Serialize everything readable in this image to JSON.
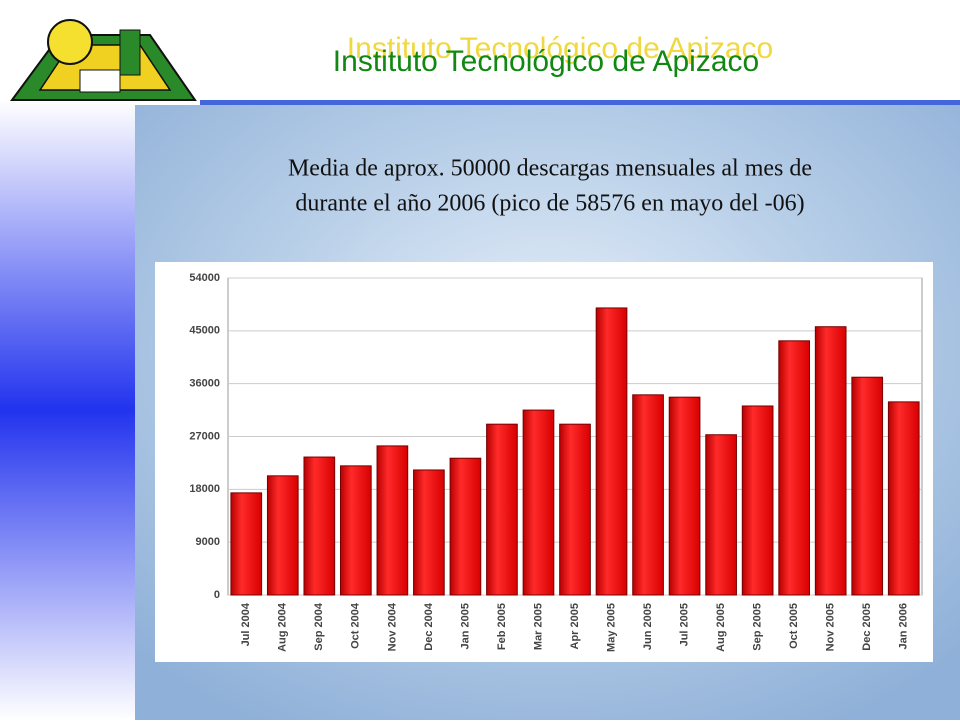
{
  "slide": {
    "title": "Instituto Tecnológico de Apizaco",
    "text": [
      "Media de aprox. 50000 descargas mensuales al mes de",
      "durante el año 2006 (pico de 58576 en mayo del -06)"
    ]
  },
  "chart_data": {
    "type": "bar",
    "categories": [
      "Jul 2004",
      "Aug 2004",
      "Sep 2004",
      "Oct 2004",
      "Nov 2004",
      "Dec 2004",
      "Jan 2005",
      "Feb 2005",
      "Mar 2005",
      "Apr 2005",
      "May 2005",
      "Jun 2005",
      "Jul 2005",
      "Aug 2005",
      "Sep 2005",
      "Oct 2005",
      "Nov 2005",
      "Dec 2005",
      "Jan 2006"
    ],
    "values": [
      17400,
      20300,
      23500,
      22000,
      25400,
      21300,
      23300,
      29100,
      31500,
      29100,
      48900,
      34100,
      33700,
      27300,
      32200,
      43300,
      45700,
      37100,
      32900
    ],
    "color": "#ee1111",
    "ylim": [
      0,
      54000
    ],
    "yticks": [
      0,
      9000,
      18000,
      27000,
      36000,
      45000,
      54000
    ],
    "grid": true
  }
}
